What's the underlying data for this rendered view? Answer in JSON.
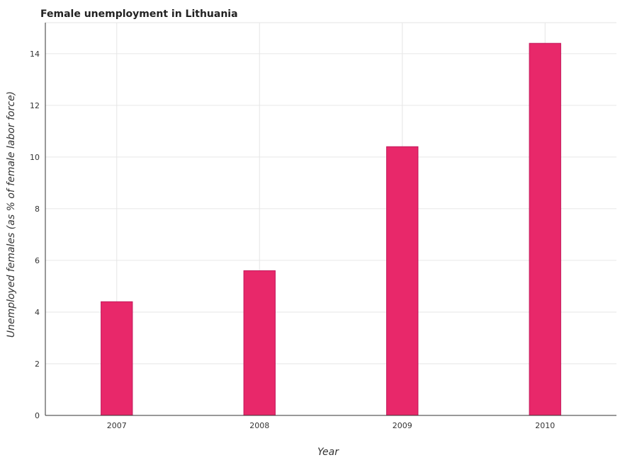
{
  "chart_data": {
    "type": "bar",
    "title": "Female unemployment in Lithuania",
    "xlabel": "Year",
    "ylabel": "Unemployed females (as % of female labor force)",
    "categories": [
      "2007",
      "2008",
      "2009",
      "2010"
    ],
    "values": [
      4.4,
      5.6,
      10.4,
      14.4
    ],
    "ylim": [
      0,
      15.2
    ],
    "yticks": [
      0,
      2,
      4,
      6,
      8,
      10,
      12,
      14
    ],
    "grid": true,
    "legend": "none",
    "bar_color": "#e8286a"
  }
}
